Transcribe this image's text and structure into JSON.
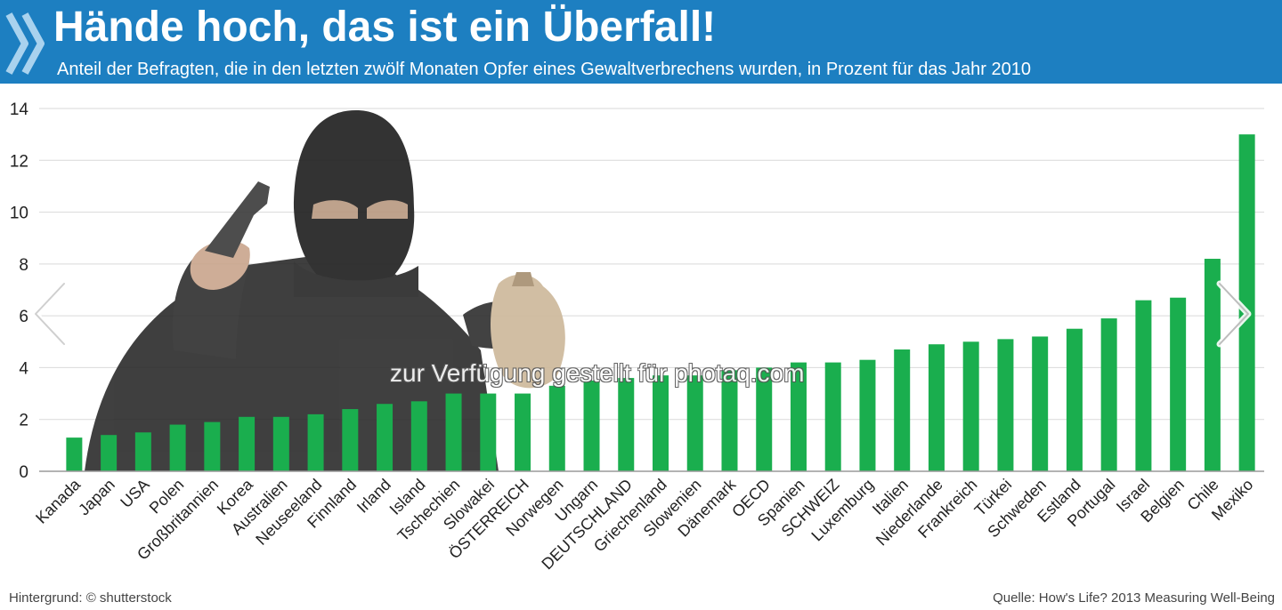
{
  "header": {
    "title": "Hände hoch, das ist ein Überfall!",
    "subtitle": "Anteil der Befragten, die in den letzten zwölf Monaten Opfer eines Gewaltverbrechens wurden, in Prozent für das Jahr 2010"
  },
  "footer": {
    "credit": "Hintergrund: © shutterstock",
    "source": "Quelle: How's Life? 2013 Measuring Well-Being"
  },
  "watermark": "zur Verfügung gestellt für photaq.com",
  "colors": {
    "header": "#1d7fc1",
    "bar": "#1aae4e",
    "grid": "#d9d9d9"
  },
  "icons": {
    "header": "double-chevron-icon",
    "prev": "chevron-left-icon",
    "next": "chevron-right-icon",
    "illustration": "masked-robber-illustration"
  },
  "chart_data": {
    "type": "bar",
    "title": "Hände hoch, das ist ein Überfall!",
    "subtitle": "Anteil der Befragten, die in den letzten zwölf Monaten Opfer eines Gewaltverbrechens wurden, in Prozent für das Jahr 2010",
    "xlabel": "",
    "ylabel": "",
    "ylim": [
      0,
      14
    ],
    "yticks": [
      0,
      2,
      4,
      6,
      8,
      10,
      12,
      14
    ],
    "grid": true,
    "categories": [
      "Kanada",
      "Japan",
      "USA",
      "Polen",
      "Großbritannien",
      "Korea",
      "Australien",
      "Neuseeland",
      "Finnland",
      "Irland",
      "Island",
      "Tschechien",
      "Slowakei",
      "ÖSTERREICH",
      "Norwegen",
      "Ungarn",
      "DEUTSCHLAND",
      "Griechenland",
      "Slowenien",
      "Dänemark",
      "OECD",
      "Spanien",
      "SCHWEIZ",
      "Luxemburg",
      "Italien",
      "Niederlande",
      "Frankreich",
      "Türkei",
      "Schweden",
      "Estland",
      "Portugal",
      "Israel",
      "Belgien",
      "Chile",
      "Mexiko"
    ],
    "values": [
      1.3,
      1.4,
      1.5,
      1.8,
      1.9,
      2.1,
      2.1,
      2.2,
      2.4,
      2.6,
      2.7,
      3.0,
      3.0,
      3.0,
      3.3,
      3.5,
      3.6,
      3.7,
      3.7,
      3.9,
      4.0,
      4.2,
      4.2,
      4.3,
      4.7,
      4.9,
      5.0,
      5.1,
      5.2,
      5.5,
      5.9,
      6.6,
      6.7,
      8.2,
      13.0
    ]
  }
}
